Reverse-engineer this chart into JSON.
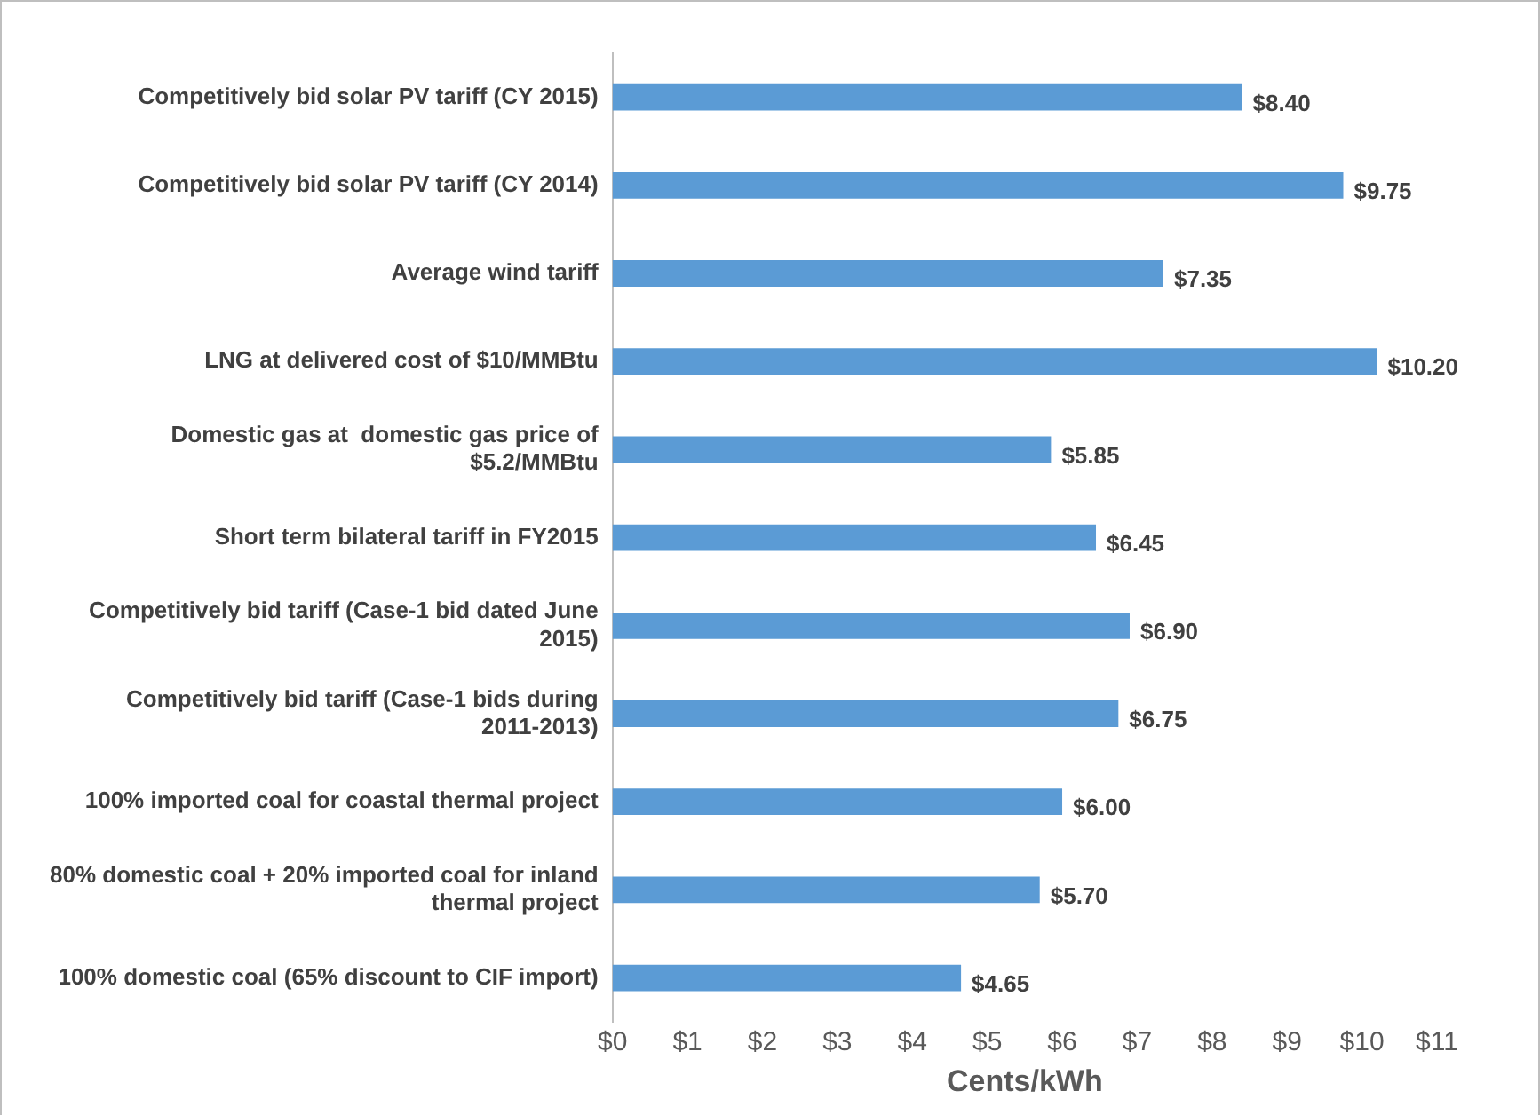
{
  "chart_data": {
    "type": "bar",
    "orientation": "horizontal",
    "xlabel": "Cents/kWh",
    "categories": [
      "Competitively bid solar PV tariff (CY 2015)",
      "Competitively bid solar PV tariff (CY 2014)",
      "Average wind tariff",
      "LNG at delivered cost of $10/MMBtu",
      "Domestic gas at  domestic gas price of $5.2/MMBtu",
      "Short term bilateral tariff in FY2015",
      "Competitively bid tariff (Case-1 bid dated June 2015)",
      "Competitively bid tariff (Case-1 bids during 2011-2013)",
      "100% imported coal for coastal thermal project",
      "80% domestic coal + 20% imported coal for inland thermal project",
      "100% domestic coal (65% discount to CIF import)"
    ],
    "values": [
      8.4,
      9.75,
      7.35,
      10.2,
      5.85,
      6.45,
      6.9,
      6.75,
      6.0,
      5.7,
      4.65
    ],
    "value_labels": [
      "$8.40",
      "$9.75",
      "$7.35",
      "$10.20",
      "$5.85",
      "$6.45",
      "$6.90",
      "$6.75",
      "$6.00",
      "$5.70",
      "$4.65"
    ],
    "color": "#5b9bd5",
    "xlim": [
      0,
      11
    ],
    "xticks": [
      {
        "value": 0,
        "label": "$0"
      },
      {
        "value": 1,
        "label": "$1"
      },
      {
        "value": 2,
        "label": "$2"
      },
      {
        "value": 3,
        "label": "$3"
      },
      {
        "value": 4,
        "label": "$4"
      },
      {
        "value": 5,
        "label": "$5"
      },
      {
        "value": 6,
        "label": "$6"
      },
      {
        "value": 7,
        "label": "$7"
      },
      {
        "value": 8,
        "label": "$8"
      },
      {
        "value": 9,
        "label": "$9"
      },
      {
        "value": 10,
        "label": "$10"
      },
      {
        "value": 11,
        "label": "$11"
      }
    ],
    "grid": false,
    "legend": false
  }
}
